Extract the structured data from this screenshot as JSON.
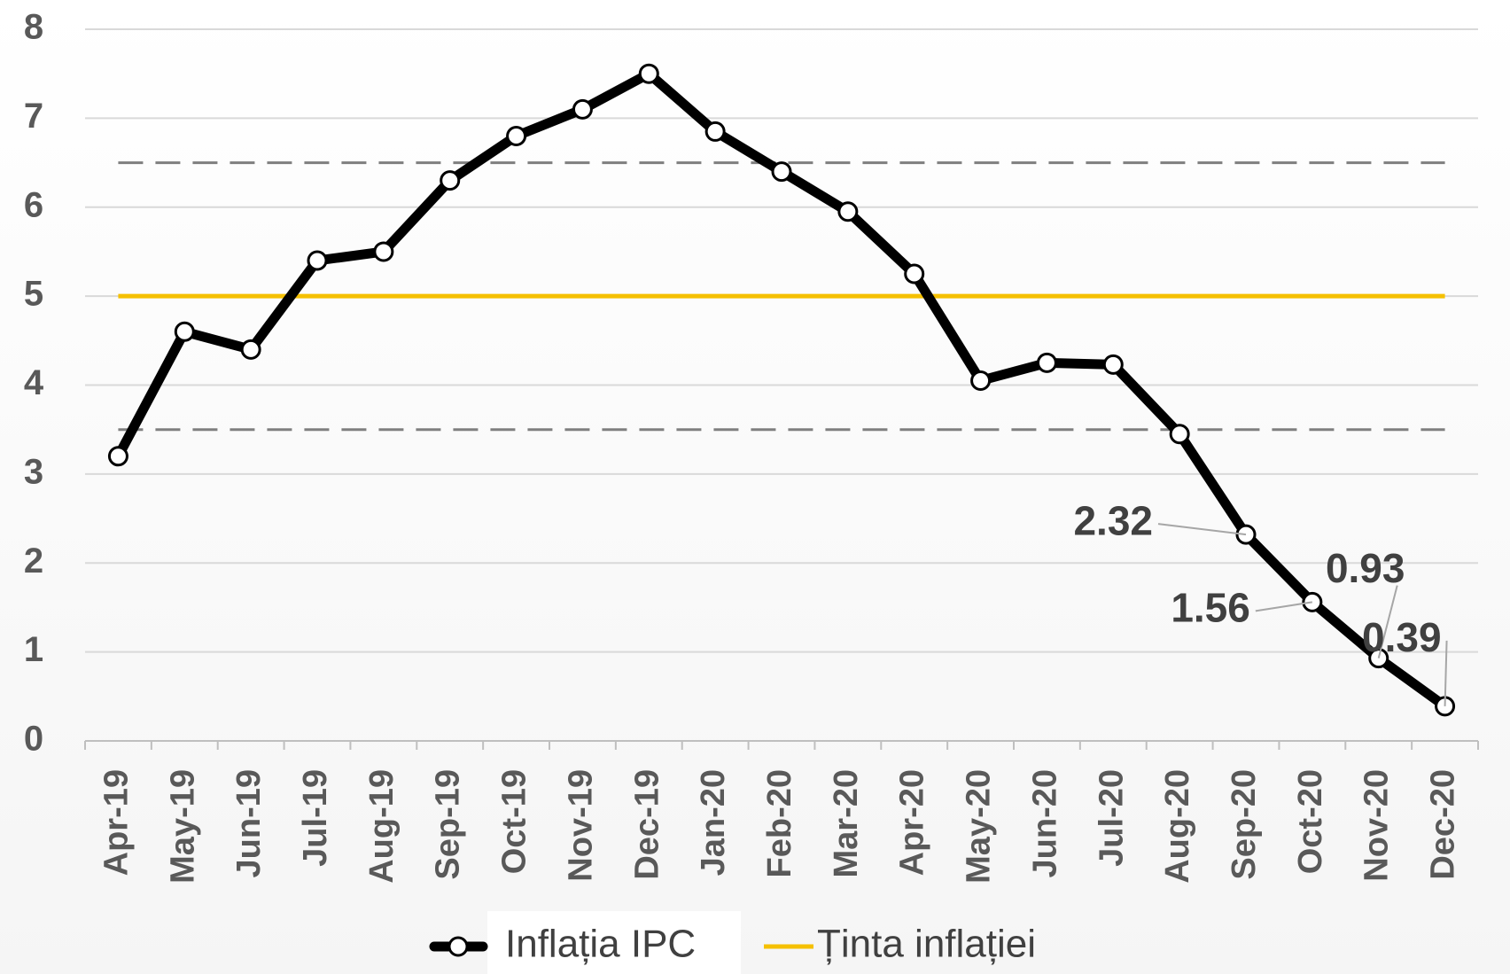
{
  "chart_data": {
    "type": "line",
    "categories": [
      "Apr-19",
      "May-19",
      "Jun-19",
      "Jul-19",
      "Aug-19",
      "Sep-19",
      "Oct-19",
      "Nov-19",
      "Dec-19",
      "Jan-20",
      "Feb-20",
      "Mar-20",
      "Apr-20",
      "May-20",
      "Jun-20",
      "Jul-20",
      "Aug-20",
      "Sep-20",
      "Oct-20",
      "Nov-20",
      "Dec-20"
    ],
    "series": [
      {
        "name": "Inflația IPC",
        "color": "#000000",
        "values": [
          3.2,
          4.6,
          4.4,
          5.4,
          5.5,
          6.3,
          6.8,
          7.1,
          7.5,
          6.85,
          6.4,
          5.95,
          5.25,
          4.05,
          4.25,
          4.23,
          3.45,
          2.32,
          1.56,
          0.93,
          0.39
        ],
        "value_labels": [
          null,
          null,
          null,
          null,
          null,
          null,
          null,
          null,
          null,
          null,
          null,
          null,
          null,
          null,
          null,
          null,
          null,
          "2.32",
          "1.56",
          "0.93",
          "0.39"
        ]
      },
      {
        "name": "Ținta inflației",
        "color": "#f5c000",
        "values": [
          5,
          5,
          5,
          5,
          5,
          5,
          5,
          5,
          5,
          5,
          5,
          5,
          5,
          5,
          5,
          5,
          5,
          5,
          5,
          5,
          5
        ]
      }
    ],
    "band_lines": [
      6.5,
      3.5
    ],
    "ylim": [
      0,
      8
    ],
    "yticks": [
      0,
      1,
      2,
      3,
      4,
      5,
      6,
      7,
      8
    ],
    "grid": true,
    "legend": "bottom"
  }
}
